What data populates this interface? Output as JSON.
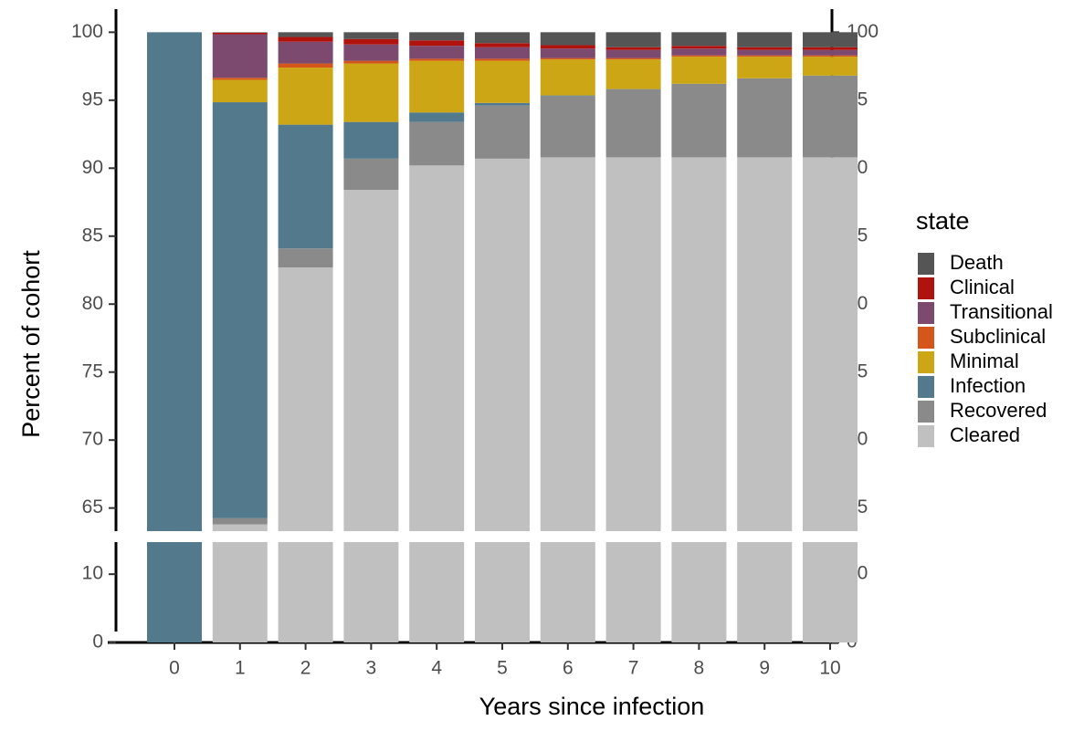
{
  "chart_data": {
    "type": "stacked-bar",
    "xlabel": "Years since infection",
    "ylabel": "Percent of cohort",
    "x": [
      0,
      1,
      2,
      3,
      4,
      5,
      6,
      7,
      8,
      9,
      10
    ],
    "ylim": [
      0,
      101.7
    ],
    "ybreak": [
      14.7,
      63.3
    ],
    "yticks": [
      0,
      10,
      65,
      70,
      75,
      80,
      85,
      90,
      95,
      100
    ],
    "secondary_axis": true,
    "legend_title": "state",
    "legend": "right",
    "series": [
      {
        "name": "Cleared",
        "color": "#c0c0c0",
        "values": [
          0,
          63.8,
          82.7,
          88.4,
          90.2,
          90.7,
          90.8,
          90.8,
          90.8,
          90.8,
          90.8
        ]
      },
      {
        "name": "Recovered",
        "color": "#8a8a8a",
        "values": [
          0,
          0.45,
          1.4,
          2.3,
          3.2,
          3.9,
          4.5,
          5.0,
          5.4,
          5.8,
          6.0
        ]
      },
      {
        "name": "Infection",
        "color": "#537a8c",
        "values": [
          100,
          30.6,
          9.1,
          2.7,
          0.7,
          0.2,
          0.05,
          0.02,
          0.01,
          0.01,
          0.01
        ]
      },
      {
        "name": "Minimal",
        "color": "#cda615",
        "values": [
          0,
          1.65,
          4.2,
          4.3,
          3.8,
          3.1,
          2.65,
          2.18,
          1.99,
          1.59,
          1.39
        ]
      },
      {
        "name": "Subclinical",
        "color": "#d4561a",
        "values": [
          0,
          0.15,
          0.3,
          0.2,
          0.15,
          0.15,
          0.1,
          0.1,
          0.1,
          0.1,
          0.1
        ]
      },
      {
        "name": "Transitional",
        "color": "#7b4a6e",
        "values": [
          0,
          3.2,
          1.6,
          1.2,
          0.95,
          0.85,
          0.7,
          0.6,
          0.5,
          0.4,
          0.4
        ]
      },
      {
        "name": "Clinical",
        "color": "#b0120e",
        "values": [
          0,
          0.12,
          0.35,
          0.4,
          0.4,
          0.3,
          0.25,
          0.2,
          0.2,
          0.2,
          0.2
        ]
      },
      {
        "name": "Death",
        "color": "#555555",
        "values": [
          0,
          0.03,
          0.35,
          0.5,
          0.6,
          0.8,
          0.95,
          1.1,
          1.0,
          1.1,
          1.1
        ]
      }
    ]
  }
}
